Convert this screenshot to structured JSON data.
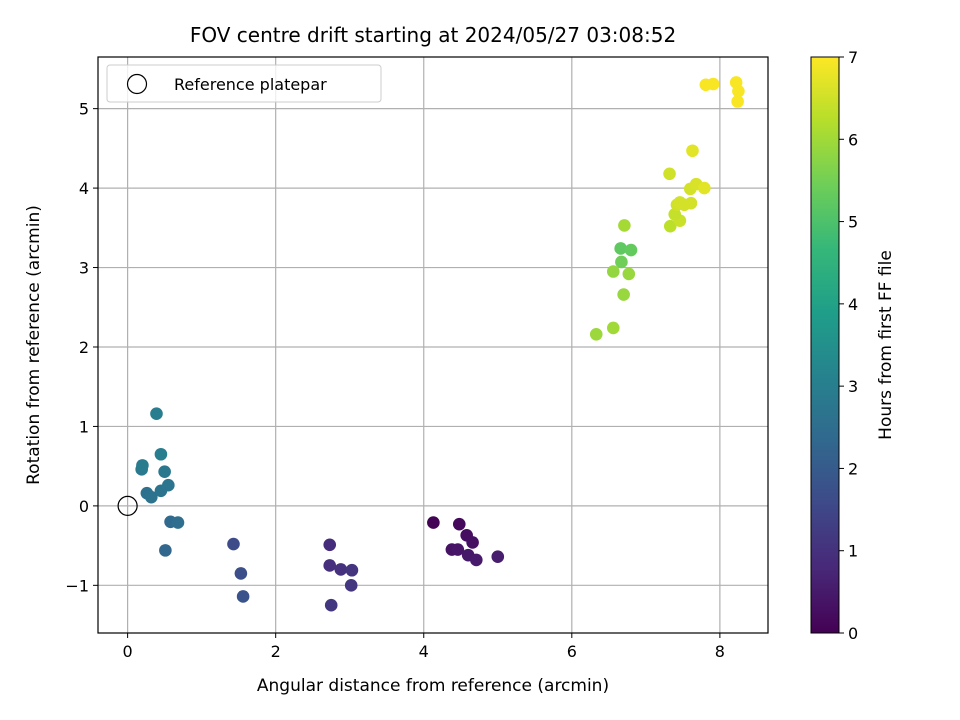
{
  "chart_data": {
    "type": "scatter",
    "title": "FOV centre drift starting at 2024/05/27 03:08:52",
    "xlabel": "Angular distance from reference (arcmin)",
    "ylabel": "Rotation from reference (arcmin)",
    "xlim": [
      -0.4,
      8.65
    ],
    "ylim": [
      -1.6,
      5.65
    ],
    "xticks": [
      0,
      2,
      4,
      6,
      8
    ],
    "xtick_labels": [
      "0",
      "2",
      "4",
      "6",
      "8"
    ],
    "yticks": [
      -1,
      0,
      1,
      2,
      3,
      4,
      5
    ],
    "ytick_labels": [
      "−1",
      "0",
      "1",
      "2",
      "3",
      "4",
      "5"
    ],
    "grid": true,
    "legend": {
      "placement": "upper left",
      "entries": [
        "Reference platepar"
      ]
    },
    "reference_point": {
      "x": 0,
      "y": 0,
      "marker": "open-circle"
    },
    "colorbar": {
      "label": "Hours from first FF file",
      "range": [
        0,
        7
      ],
      "ticks": [
        0,
        1,
        2,
        3,
        4,
        5,
        6,
        7
      ],
      "tick_labels": [
        "0",
        "1",
        "2",
        "3",
        "4",
        "5",
        "6",
        "7"
      ],
      "colormap": "viridis",
      "colormap_stops": [
        "#440154",
        "#482878",
        "#3e4989",
        "#31688e",
        "#26828e",
        "#1f9e89",
        "#35b779",
        "#6ece58",
        "#b5de2b",
        "#fde725"
      ]
    },
    "series": [
      {
        "points": [
          {
            "x": 4.13,
            "y": -0.21,
            "c": 0.05
          },
          {
            "x": 4.48,
            "y": -0.23,
            "c": 0.15
          },
          {
            "x": 4.58,
            "y": -0.37,
            "c": 0.25
          },
          {
            "x": 4.66,
            "y": -0.46,
            "c": 0.3
          },
          {
            "x": 4.38,
            "y": -0.55,
            "c": 0.35
          },
          {
            "x": 4.46,
            "y": -0.55,
            "c": 0.4
          },
          {
            "x": 4.6,
            "y": -0.62,
            "c": 0.45
          },
          {
            "x": 4.71,
            "y": -0.68,
            "c": 0.5
          },
          {
            "x": 5.0,
            "y": -0.64,
            "c": 0.55
          },
          {
            "x": 2.73,
            "y": -0.49,
            "c": 0.9
          },
          {
            "x": 2.73,
            "y": -0.75,
            "c": 0.95
          },
          {
            "x": 2.88,
            "y": -0.8,
            "c": 1.0
          },
          {
            "x": 3.03,
            "y": -0.81,
            "c": 1.05
          },
          {
            "x": 3.02,
            "y": -1.0,
            "c": 1.1
          },
          {
            "x": 2.75,
            "y": -1.25,
            "c": 1.15
          },
          {
            "x": 1.43,
            "y": -0.48,
            "c": 1.6
          },
          {
            "x": 1.53,
            "y": -0.85,
            "c": 1.7
          },
          {
            "x": 1.56,
            "y": -1.14,
            "c": 1.8
          },
          {
            "x": 0.51,
            "y": -0.56,
            "c": 2.3
          },
          {
            "x": 0.58,
            "y": -0.2,
            "c": 2.4
          },
          {
            "x": 0.68,
            "y": -0.21,
            "c": 2.5
          },
          {
            "x": 0.26,
            "y": 0.16,
            "c": 2.6
          },
          {
            "x": 0.32,
            "y": 0.11,
            "c": 2.65
          },
          {
            "x": 0.45,
            "y": 0.19,
            "c": 2.7
          },
          {
            "x": 0.55,
            "y": 0.26,
            "c": 2.75
          },
          {
            "x": 0.5,
            "y": 0.43,
            "c": 2.8
          },
          {
            "x": 0.19,
            "y": 0.46,
            "c": 2.85
          },
          {
            "x": 0.2,
            "y": 0.51,
            "c": 2.9
          },
          {
            "x": 0.45,
            "y": 0.65,
            "c": 2.95
          },
          {
            "x": 0.39,
            "y": 1.16,
            "c": 3.0
          },
          {
            "x": 6.33,
            "y": 2.16,
            "c": 5.95
          },
          {
            "x": 6.56,
            "y": 2.24,
            "c": 6.0
          },
          {
            "x": 6.7,
            "y": 2.66,
            "c": 5.9
          },
          {
            "x": 6.56,
            "y": 2.95,
            "c": 5.85
          },
          {
            "x": 6.77,
            "y": 2.92,
            "c": 5.9
          },
          {
            "x": 6.67,
            "y": 3.07,
            "c": 5.45
          },
          {
            "x": 6.66,
            "y": 3.24,
            "c": 5.25
          },
          {
            "x": 6.8,
            "y": 3.22,
            "c": 5.3
          },
          {
            "x": 6.71,
            "y": 3.53,
            "c": 6.05
          },
          {
            "x": 7.33,
            "y": 3.52,
            "c": 6.3
          },
          {
            "x": 7.46,
            "y": 3.59,
            "c": 6.45
          },
          {
            "x": 7.39,
            "y": 3.67,
            "c": 6.4
          },
          {
            "x": 7.42,
            "y": 3.79,
            "c": 6.5
          },
          {
            "x": 7.46,
            "y": 3.82,
            "c": 6.55
          },
          {
            "x": 7.61,
            "y": 3.81,
            "c": 6.55
          },
          {
            "x": 7.52,
            "y": 3.79,
            "c": 6.55
          },
          {
            "x": 7.6,
            "y": 3.99,
            "c": 6.55
          },
          {
            "x": 7.68,
            "y": 4.05,
            "c": 6.6
          },
          {
            "x": 7.79,
            "y": 4.0,
            "c": 6.7
          },
          {
            "x": 7.32,
            "y": 4.18,
            "c": 6.5
          },
          {
            "x": 7.63,
            "y": 4.47,
            "c": 6.7
          },
          {
            "x": 7.81,
            "y": 5.3,
            "c": 6.95
          },
          {
            "x": 7.91,
            "y": 5.31,
            "c": 6.95
          },
          {
            "x": 8.22,
            "y": 5.33,
            "c": 6.95
          },
          {
            "x": 8.25,
            "y": 5.22,
            "c": 6.95
          },
          {
            "x": 8.24,
            "y": 5.09,
            "c": 6.95
          }
        ]
      }
    ]
  }
}
